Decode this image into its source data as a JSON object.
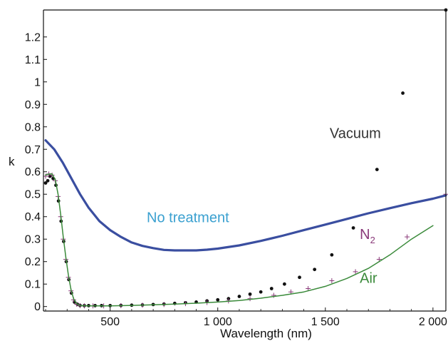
{
  "chart_data": {
    "type": "scatter",
    "title": "",
    "xlabel": "Wavelength (nm)",
    "ylabel": "k",
    "xlim": [
      190,
      2060
    ],
    "ylim": [
      -0.02,
      1.32
    ],
    "x_ticks": [
      {
        "value": 500,
        "label": "500"
      },
      {
        "value": 1000,
        "label": "1 000"
      },
      {
        "value": 1500,
        "label": "1 500"
      },
      {
        "value": 2000,
        "label": "2 000"
      }
    ],
    "y_ticks": [
      {
        "value": 0,
        "label": "0"
      },
      {
        "value": 0.1,
        "label": "0.1"
      },
      {
        "value": 0.2,
        "label": "0.2"
      },
      {
        "value": 0.3,
        "label": "0.3"
      },
      {
        "value": 0.4,
        "label": "0.4"
      },
      {
        "value": 0.5,
        "label": "0.5"
      },
      {
        "value": 0.6,
        "label": "0.6"
      },
      {
        "value": 0.7,
        "label": "0.7"
      },
      {
        "value": 0.8,
        "label": "0.8"
      },
      {
        "value": 0.9,
        "label": "0.9"
      },
      {
        "value": 1,
        "label": "1"
      },
      {
        "value": 1.1,
        "label": "1.1"
      },
      {
        "value": 1.2,
        "label": "1.2"
      }
    ],
    "grid": false,
    "series": [
      {
        "name": "No treatment",
        "style": "thick-line",
        "color": "#3a4ea0",
        "points": [
          [
            200,
            0.74
          ],
          [
            240,
            0.7
          ],
          [
            280,
            0.64
          ],
          [
            320,
            0.57
          ],
          [
            360,
            0.5
          ],
          [
            400,
            0.44
          ],
          [
            450,
            0.38
          ],
          [
            500,
            0.34
          ],
          [
            550,
            0.31
          ],
          [
            600,
            0.285
          ],
          [
            650,
            0.27
          ],
          [
            700,
            0.26
          ],
          [
            750,
            0.252
          ],
          [
            800,
            0.25
          ],
          [
            850,
            0.25
          ],
          [
            900,
            0.25
          ],
          [
            950,
            0.253
          ],
          [
            1000,
            0.258
          ],
          [
            1100,
            0.272
          ],
          [
            1200,
            0.292
          ],
          [
            1300,
            0.315
          ],
          [
            1400,
            0.34
          ],
          [
            1500,
            0.365
          ],
          [
            1600,
            0.39
          ],
          [
            1700,
            0.415
          ],
          [
            1800,
            0.438
          ],
          [
            1900,
            0.46
          ],
          [
            2000,
            0.48
          ],
          [
            2060,
            0.495
          ]
        ]
      },
      {
        "name": "Vacuum",
        "style": "markers-dot",
        "color": "#111111",
        "points": [
          [
            200,
            0.55
          ],
          [
            210,
            0.56
          ],
          [
            220,
            0.58
          ],
          [
            235,
            0.57
          ],
          [
            248,
            0.54
          ],
          [
            260,
            0.47
          ],
          [
            272,
            0.38
          ],
          [
            284,
            0.29
          ],
          [
            296,
            0.2
          ],
          [
            308,
            0.12
          ],
          [
            320,
            0.06
          ],
          [
            334,
            0.02
          ],
          [
            348,
            0.01
          ],
          [
            360,
            0.005
          ],
          [
            380,
            0.004
          ],
          [
            400,
            0.004
          ],
          [
            430,
            0.004
          ],
          [
            460,
            0.004
          ],
          [
            500,
            0.004
          ],
          [
            550,
            0.005
          ],
          [
            600,
            0.006
          ],
          [
            650,
            0.007
          ],
          [
            700,
            0.009
          ],
          [
            750,
            0.011
          ],
          [
            800,
            0.014
          ],
          [
            850,
            0.017
          ],
          [
            900,
            0.02
          ],
          [
            950,
            0.025
          ],
          [
            1000,
            0.03
          ],
          [
            1050,
            0.035
          ],
          [
            1100,
            0.045
          ],
          [
            1150,
            0.055
          ],
          [
            1200,
            0.065
          ],
          [
            1250,
            0.08
          ],
          [
            1310,
            0.1
          ],
          [
            1380,
            0.13
          ],
          [
            1450,
            0.165
          ],
          [
            1530,
            0.23
          ],
          [
            1630,
            0.35
          ],
          [
            1740,
            0.61
          ],
          [
            1860,
            0.95
          ],
          [
            2060,
            1.32
          ]
        ]
      },
      {
        "name": "N₂",
        "style": "markers-plus",
        "color": "#8a3a7a",
        "points": [
          [
            200,
            0.58
          ],
          [
            215,
            0.59
          ],
          [
            230,
            0.585
          ],
          [
            245,
            0.56
          ],
          [
            258,
            0.49
          ],
          [
            270,
            0.4
          ],
          [
            282,
            0.3
          ],
          [
            294,
            0.21
          ],
          [
            306,
            0.13
          ],
          [
            318,
            0.07
          ],
          [
            330,
            0.03
          ],
          [
            345,
            0.01
          ],
          [
            360,
            0.004
          ],
          [
            380,
            0.003
          ],
          [
            420,
            0.003
          ],
          [
            470,
            0.003
          ],
          [
            550,
            0.004
          ],
          [
            650,
            0.006
          ],
          [
            750,
            0.009
          ],
          [
            850,
            0.013
          ],
          [
            950,
            0.018
          ],
          [
            1050,
            0.025
          ],
          [
            1150,
            0.035
          ],
          [
            1260,
            0.05
          ],
          [
            1340,
            0.065
          ],
          [
            1420,
            0.08
          ],
          [
            1530,
            0.115
          ],
          [
            1640,
            0.155
          ],
          [
            1750,
            0.21
          ],
          [
            1880,
            0.31
          ],
          [
            2060,
            0.5
          ]
        ]
      },
      {
        "name": "Air",
        "style": "thin-line",
        "color": "#3a8a3a",
        "points": [
          [
            200,
            0.585
          ],
          [
            215,
            0.59
          ],
          [
            230,
            0.59
          ],
          [
            245,
            0.565
          ],
          [
            258,
            0.5
          ],
          [
            270,
            0.41
          ],
          [
            282,
            0.31
          ],
          [
            294,
            0.22
          ],
          [
            306,
            0.14
          ],
          [
            318,
            0.075
          ],
          [
            330,
            0.035
          ],
          [
            345,
            0.012
          ],
          [
            360,
            0.004
          ],
          [
            400,
            0.003
          ],
          [
            500,
            0.003
          ],
          [
            600,
            0.005
          ],
          [
            700,
            0.008
          ],
          [
            800,
            0.011
          ],
          [
            900,
            0.015
          ],
          [
            1000,
            0.02
          ],
          [
            1100,
            0.027
          ],
          [
            1200,
            0.037
          ],
          [
            1300,
            0.05
          ],
          [
            1400,
            0.065
          ],
          [
            1500,
            0.09
          ],
          [
            1600,
            0.125
          ],
          [
            1700,
            0.17
          ],
          [
            1800,
            0.23
          ],
          [
            1900,
            0.3
          ],
          [
            2000,
            0.36
          ]
        ]
      }
    ],
    "annotations": [
      {
        "text": "Vacuum",
        "x": 1520,
        "y": 0.75,
        "color": "#333333"
      },
      {
        "text": "No treatment",
        "x": 670,
        "y": 0.375,
        "color": "#3aa0d0"
      },
      {
        "text": "N",
        "sub": "2",
        "x": 1660,
        "y": 0.3,
        "color": "#8a3a7a"
      },
      {
        "text": "Air",
        "x": 1660,
        "y": 0.105,
        "color": "#3a8a3a"
      }
    ]
  }
}
